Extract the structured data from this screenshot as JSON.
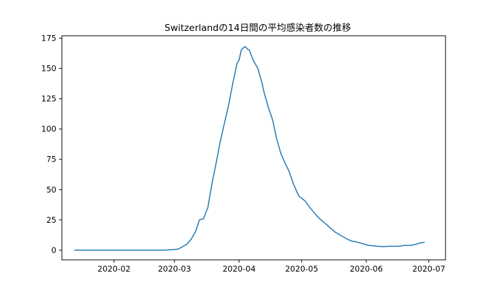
{
  "chart_data": {
    "type": "line",
    "title": "Switzerlandの14日間の平均感染者数の推移",
    "xlabel": "",
    "ylabel": "",
    "x_tick_labels": [
      "2020-02",
      "2020-03",
      "2020-04",
      "2020-05",
      "2020-06",
      "2020-07"
    ],
    "x_ticks": [
      "2020-02-01",
      "2020-03-01",
      "2020-04-01",
      "2020-05-01",
      "2020-06-01",
      "2020-07-01"
    ],
    "xlim": [
      "2020-01-07",
      "2020-07-09"
    ],
    "y_ticks": [
      0,
      25,
      50,
      75,
      100,
      125,
      150,
      175
    ],
    "ylim": [
      -8,
      177
    ],
    "grid": false,
    "line_color": "#1f77b4",
    "series": [
      {
        "x": [
          "2020-01-13",
          "2020-02-01",
          "2020-02-15",
          "2020-02-25",
          "2020-03-01",
          "2020-03-03",
          "2020-03-05",
          "2020-03-07",
          "2020-03-09",
          "2020-03-11",
          "2020-03-13",
          "2020-03-15",
          "2020-03-16",
          "2020-03-17",
          "2020-03-19",
          "2020-03-21",
          "2020-03-23",
          "2020-03-25",
          "2020-03-27",
          "2020-03-29",
          "2020-03-31",
          "2020-04-01",
          "2020-04-02",
          "2020-04-03",
          "2020-04-04",
          "2020-04-05",
          "2020-04-06",
          "2020-04-07",
          "2020-04-08",
          "2020-04-10",
          "2020-04-12",
          "2020-04-13",
          "2020-04-15",
          "2020-04-17",
          "2020-04-19",
          "2020-04-21",
          "2020-04-23",
          "2020-04-25",
          "2020-04-27",
          "2020-04-29",
          "2020-04-30",
          "2020-05-01",
          "2020-05-03",
          "2020-05-05",
          "2020-05-07",
          "2020-05-09",
          "2020-05-11",
          "2020-05-13",
          "2020-05-15",
          "2020-05-17",
          "2020-05-19",
          "2020-05-21",
          "2020-05-23",
          "2020-05-25",
          "2020-05-27",
          "2020-05-29",
          "2020-05-31",
          "2020-06-02",
          "2020-06-05",
          "2020-06-08",
          "2020-06-10",
          "2020-06-12",
          "2020-06-14",
          "2020-06-16",
          "2020-06-18",
          "2020-06-19",
          "2020-06-21",
          "2020-06-23",
          "2020-06-25",
          "2020-06-27",
          "2020-06-29"
        ],
        "y": [
          0,
          0,
          0,
          0,
          0.5,
          1,
          3,
          5,
          9,
          15,
          25,
          26,
          31,
          35,
          55,
          72,
          90,
          105,
          120,
          138,
          154,
          157,
          165,
          167,
          168,
          166,
          165,
          160,
          156,
          150,
          138,
          130,
          118,
          108,
          92,
          80,
          72,
          65,
          55,
          47,
          44,
          43,
          40,
          35,
          31,
          27,
          24,
          21,
          18,
          15,
          13,
          11,
          9,
          7.5,
          7,
          6,
          5,
          4,
          3.5,
          3,
          3,
          3.2,
          3.2,
          3.3,
          3.5,
          4,
          4,
          4.2,
          5,
          6,
          6.5
        ]
      }
    ]
  }
}
